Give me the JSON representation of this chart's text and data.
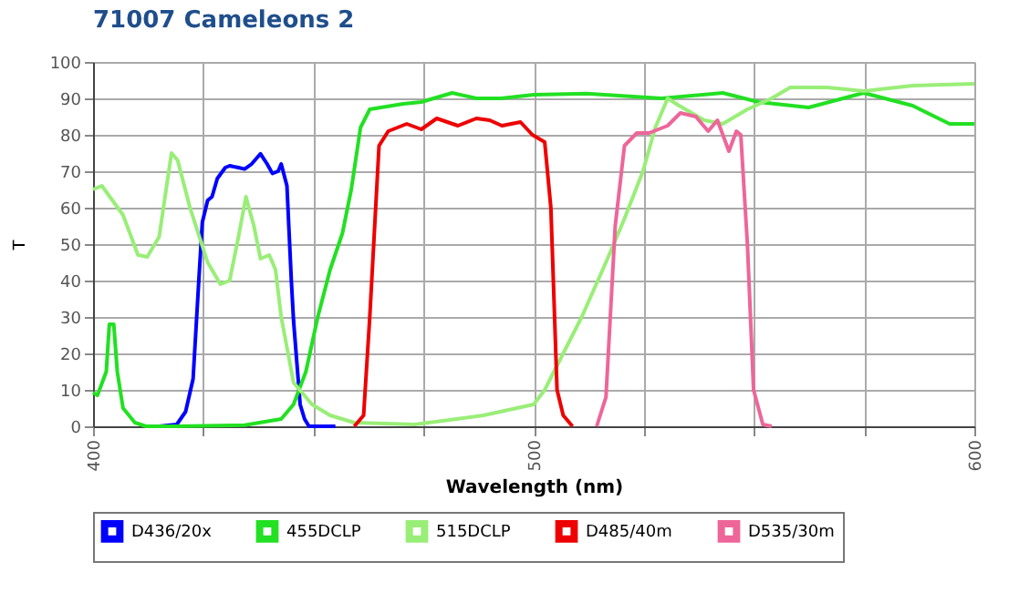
{
  "chart_data": {
    "type": "line",
    "title": "71007 Cameleons 2",
    "xlabel": "Wavelength (nm)",
    "ylabel": "T",
    "xlim": [
      400,
      600
    ],
    "ylim": [
      0,
      100
    ],
    "xticks": [
      400,
      {
        "value": 425,
        "label": null
      },
      {
        "value": 450,
        "label": null
      },
      {
        "value": 475,
        "label": null
      },
      500,
      {
        "value": 525,
        "label": null
      },
      {
        "value": 550,
        "label": null
      },
      {
        "value": 575,
        "label": null
      },
      600
    ],
    "yticks": [
      0,
      10,
      20,
      30,
      40,
      50,
      60,
      70,
      80,
      90,
      100
    ],
    "grid": true,
    "legend": "bottom",
    "marker": "none",
    "line_style": "solid",
    "series": [
      {
        "name": "D436/20x",
        "color": "#0000ff",
        "x": [
          415,
          419,
          421,
          422.7,
          424,
          424.8,
          426,
          427,
          428.2,
          430,
          431,
          433,
          434.4,
          436,
          438,
          439.5,
          440.7,
          442,
          442.7,
          444,
          445,
          445.5,
          447,
          448,
          449,
          455
        ],
        "values": [
          0,
          0.5,
          4,
          13,
          40,
          56,
          62,
          63,
          68,
          71,
          71.5,
          71,
          70.6,
          72,
          74.8,
          72,
          69.4,
          70,
          72,
          66,
          40,
          29,
          6,
          2,
          0,
          0
        ]
      },
      {
        "name": "455DCLP",
        "color": "#22e022",
        "x": [
          400,
          401,
          403,
          403.7,
          404.7,
          405.5,
          406.8,
          409.5,
          412,
          419,
          434.4,
          442.7,
          445.5,
          448.3,
          451,
          453.8,
          456.6,
          458.6,
          460.7,
          462.8,
          470.4,
          474.5,
          481.5,
          487,
          492.6,
          500,
          512,
          529,
          542.9,
          551,
          562.4,
          574.9,
          586,
          594.4,
          600
        ],
        "values": [
          9.3,
          8.5,
          15,
          28,
          28,
          15,
          5,
          1,
          0,
          0,
          0.3,
          2,
          6,
          15,
          30,
          43,
          53,
          65,
          82,
          87,
          88.5,
          89,
          91.5,
          90,
          90,
          91,
          91.3,
          90,
          91.5,
          89,
          87.5,
          91.5,
          88,
          83,
          83
        ]
      },
      {
        "name": "515DCLP",
        "color": "#99ee77",
        "x": [
          400,
          402,
          406.8,
          410.2,
          412.3,
          415,
          417.8,
          419.2,
          422,
          426,
          428.9,
          431,
          433,
          434.7,
          436.5,
          438,
          440,
          441.4,
          442.7,
          445.5,
          449.7,
          453.8,
          459.3,
          473,
          488.6,
          500,
          502.5,
          506.7,
          510.9,
          516.4,
          520.6,
          524.8,
          527.6,
          530.4,
          533,
          538.7,
          542.9,
          548.5,
          554,
          558.2,
          566.6,
          574.9,
          586,
          600
        ],
        "values": [
          65,
          66,
          58,
          47,
          46.5,
          52,
          75,
          73,
          60,
          45,
          39,
          40,
          52,
          63,
          55,
          46,
          47,
          43,
          30,
          12,
          6,
          3,
          1,
          0.5,
          3,
          6,
          10,
          20,
          30,
          45,
          57,
          70,
          82,
          90,
          88,
          84,
          83,
          87,
          90,
          93,
          93,
          92,
          93.5,
          94
        ]
      },
      {
        "name": "D485/40m",
        "color": "#ee0000",
        "x": [
          459.3,
          461.4,
          462.8,
          464.9,
          467,
          471.2,
          474.5,
          478,
          482.8,
          487,
          490,
          492.8,
          497,
          499.7,
          502.5,
          503.9,
          505.3,
          506.7,
          508.8
        ],
        "values": [
          0,
          3,
          30,
          77,
          81,
          83,
          81.5,
          84.5,
          82.5,
          84.5,
          84,
          82.5,
          83.5,
          80,
          78,
          60,
          10,
          3,
          0
        ]
      },
      {
        "name": "D535/30m",
        "color": "#ee6699",
        "x": [
          514.3,
          516.4,
          518.5,
          520.6,
          523.4,
          526.2,
          530.4,
          533.3,
          536.8,
          539.6,
          541.7,
          544.3,
          546,
          547,
          548.5,
          549.9,
          552,
          554
        ],
        "values": [
          0,
          8,
          55,
          77,
          80.5,
          80.5,
          82.5,
          86,
          85,
          81,
          84,
          75.5,
          81,
          80,
          50,
          10,
          0.5,
          0
        ]
      }
    ]
  }
}
